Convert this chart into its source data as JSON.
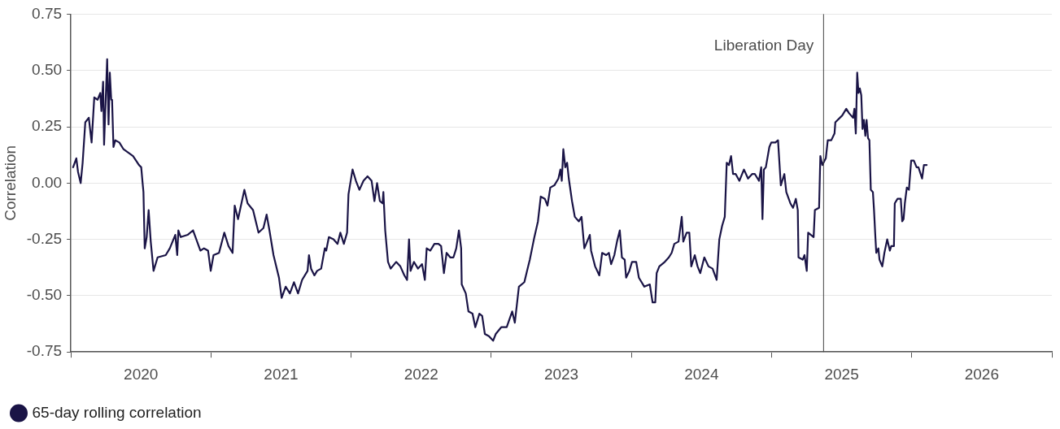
{
  "chart_data": {
    "type": "line",
    "ylabel": "Correlation",
    "xlim": [
      2020,
      2027
    ],
    "xticks": [
      {
        "value": 2020,
        "label": null
      },
      {
        "value": 2020.5,
        "label": "2020"
      },
      {
        "value": 2021,
        "label": null
      },
      {
        "value": 2021.5,
        "label": "2021"
      },
      {
        "value": 2022,
        "label": null
      },
      {
        "value": 2022.5,
        "label": "2022"
      },
      {
        "value": 2023,
        "label": null
      },
      {
        "value": 2023.5,
        "label": "2023"
      },
      {
        "value": 2024,
        "label": null
      },
      {
        "value": 2024.5,
        "label": "2024"
      },
      {
        "value": 2025,
        "label": null
      },
      {
        "value": 2025.5,
        "label": "2025"
      },
      {
        "value": 2026,
        "label": null
      },
      {
        "value": 2026.5,
        "label": "2026"
      },
      {
        "value": 2027,
        "label": null
      }
    ],
    "ylim": [
      -0.75,
      0.75
    ],
    "yticks": [
      {
        "value": -0.75,
        "label": "-0.75"
      },
      {
        "value": -0.5,
        "label": "-0.50"
      },
      {
        "value": -0.25,
        "label": "-0.25"
      },
      {
        "value": 0,
        "label": "0.00"
      },
      {
        "value": 0.25,
        "label": "0.25"
      },
      {
        "value": 0.5,
        "label": "0.50"
      },
      {
        "value": 0.75,
        "label": "0.75"
      }
    ],
    "grid": "y",
    "legend": "bottom left",
    "marker": "none",
    "line_style": "solid",
    "ref_lines": [
      {
        "axis": "x",
        "value": 2025.371,
        "label": "Liberation Day",
        "color": "#444444"
      }
    ],
    "series": [
      {
        "name": "65-day rolling correlation",
        "color": "#1a1446",
        "x": [
          2020.016,
          2020.039,
          2020.051,
          2020.07,
          2020.084,
          2020.103,
          2020.128,
          2020.148,
          2020.167,
          2020.191,
          2020.21,
          2020.218,
          2020.23,
          2020.237,
          2020.259,
          2020.269,
          2020.278,
          2020.288,
          2020.294,
          2020.304,
          2020.317,
          2020.346,
          2020.376,
          2020.444,
          2020.486,
          2020.502,
          2020.512,
          2020.518,
          2020.527,
          2020.541,
          2020.555,
          2020.57,
          2020.59,
          2020.619,
          2020.677,
          2020.706,
          2020.745,
          2020.759,
          2020.767,
          2020.784,
          2020.833,
          2020.872,
          2020.901,
          2020.924,
          2020.95,
          2020.979,
          2020.998,
          2021.018,
          2021.057,
          2021.095,
          2021.125,
          2021.154,
          2021.169,
          2021.193,
          2021.238,
          2021.261,
          2021.3,
          2021.339,
          2021.374,
          2021.397,
          2021.417,
          2021.446,
          2021.485,
          2021.504,
          2021.533,
          2021.563,
          2021.592,
          2021.621,
          2021.65,
          2021.689,
          2021.699,
          2021.714,
          2021.738,
          2021.757,
          2021.786,
          2021.812,
          2021.822,
          2021.841,
          2021.874,
          2021.903,
          2021.923,
          2021.948,
          2021.971,
          2021.981,
          2022.01,
          2022.034,
          2022.059,
          2022.088,
          2022.117,
          2022.146,
          2022.166,
          2022.185,
          2022.205,
          2022.224,
          2022.23,
          2022.243,
          2022.263,
          2022.282,
          2022.321,
          2022.351,
          2022.38,
          2022.399,
          2022.413,
          2022.424,
          2022.448,
          2022.477,
          2022.506,
          2022.526,
          2022.539,
          2022.565,
          2022.594,
          2022.623,
          2022.642,
          2022.662,
          2022.681,
          2022.707,
          2022.73,
          2022.75,
          2022.769,
          2022.785,
          2022.789,
          2022.818,
          2022.837,
          2022.866,
          2022.886,
          2022.915,
          2022.935,
          2022.954,
          2022.983,
          2023.013,
          2023.032,
          2023.071,
          2023.11,
          2023.149,
          2023.168,
          2023.197,
          2023.236,
          2023.255,
          2023.275,
          2023.304,
          2023.333,
          2023.353,
          2023.382,
          2023.401,
          2023.421,
          2023.45,
          2023.479,
          2023.493,
          2023.503,
          2023.514,
          2023.528,
          2023.541,
          2023.553,
          2023.576,
          2023.596,
          2023.625,
          2023.644,
          2023.664,
          2023.703,
          2023.712,
          2023.741,
          2023.771,
          2023.791,
          2023.82,
          2023.839,
          2023.855,
          2023.878,
          2023.897,
          2023.917,
          2023.932,
          2023.952,
          2023.962,
          2023.985,
          2024.004,
          2024.034,
          2024.053,
          2024.092,
          2024.131,
          2024.151,
          2024.17,
          2024.18,
          2024.199,
          2024.238,
          2024.267,
          2024.287,
          2024.306,
          2024.336,
          2024.359,
          2024.37,
          2024.394,
          2024.413,
          2024.427,
          2024.452,
          2024.472,
          2024.491,
          2024.52,
          2024.55,
          2024.579,
          2024.608,
          2024.627,
          2024.647,
          2024.666,
          2024.68,
          2024.696,
          2024.711,
          2024.725,
          2024.744,
          2024.77,
          2024.803,
          2024.832,
          2024.861,
          2024.881,
          2024.91,
          2024.926,
          2024.935,
          2024.945,
          2024.959,
          2024.984,
          2024.998,
          2025.027,
          2025.046,
          2025.066,
          2025.091,
          2025.105,
          2025.134,
          2025.153,
          2025.173,
          2025.187,
          2025.192,
          2025.222,
          2025.235,
          2025.251,
          2025.261,
          2025.3,
          2025.309,
          2025.339,
          2025.348,
          2025.362,
          2025.387,
          2025.401,
          2025.426,
          2025.449,
          2025.455,
          2025.504,
          2025.533,
          2025.553,
          2025.582,
          2025.591,
          2025.601,
          2025.611,
          2025.62,
          2025.63,
          2025.64,
          2025.649,
          2025.659,
          2025.669,
          2025.678,
          2025.688,
          2025.698,
          2025.708,
          2025.723,
          2025.731,
          2025.739,
          2025.747,
          2025.762,
          2025.77,
          2025.79,
          2025.805,
          2025.825,
          2025.844,
          2025.854,
          2025.873,
          2025.879,
          2025.899,
          2025.922,
          2025.932,
          2025.942,
          2025.951,
          2025.965,
          2025.98,
          2025.996,
          2026.015,
          2026.035,
          2026.048,
          2026.074,
          2026.087,
          2026.107
        ],
        "values": [
          0.07,
          0.11,
          0.05,
          0.0,
          0.09,
          0.27,
          0.29,
          0.18,
          0.38,
          0.37,
          0.4,
          0.32,
          0.45,
          0.17,
          0.55,
          0.26,
          0.49,
          0.37,
          0.37,
          0.16,
          0.19,
          0.18,
          0.15,
          0.12,
          0.08,
          0.07,
          0.0,
          -0.04,
          -0.29,
          -0.24,
          -0.12,
          -0.26,
          -0.39,
          -0.33,
          -0.32,
          -0.29,
          -0.23,
          -0.32,
          -0.21,
          -0.24,
          -0.23,
          -0.21,
          -0.26,
          -0.3,
          -0.29,
          -0.3,
          -0.39,
          -0.32,
          -0.31,
          -0.22,
          -0.28,
          -0.31,
          -0.1,
          -0.16,
          -0.03,
          -0.09,
          -0.12,
          -0.22,
          -0.2,
          -0.14,
          -0.21,
          -0.32,
          -0.42,
          -0.51,
          -0.46,
          -0.49,
          -0.44,
          -0.49,
          -0.43,
          -0.39,
          -0.32,
          -0.38,
          -0.41,
          -0.39,
          -0.38,
          -0.29,
          -0.3,
          -0.24,
          -0.25,
          -0.27,
          -0.22,
          -0.27,
          -0.22,
          -0.05,
          0.06,
          0.01,
          -0.03,
          0.01,
          0.03,
          0.01,
          -0.08,
          0.0,
          -0.08,
          -0.09,
          -0.04,
          -0.21,
          -0.35,
          -0.38,
          -0.35,
          -0.37,
          -0.41,
          -0.43,
          -0.25,
          -0.39,
          -0.35,
          -0.38,
          -0.36,
          -0.43,
          -0.29,
          -0.3,
          -0.27,
          -0.27,
          -0.28,
          -0.4,
          -0.31,
          -0.33,
          -0.33,
          -0.29,
          -0.21,
          -0.29,
          -0.45,
          -0.49,
          -0.57,
          -0.58,
          -0.64,
          -0.58,
          -0.59,
          -0.67,
          -0.68,
          -0.7,
          -0.67,
          -0.64,
          -0.64,
          -0.57,
          -0.62,
          -0.46,
          -0.44,
          -0.39,
          -0.34,
          -0.25,
          -0.17,
          -0.06,
          -0.07,
          -0.1,
          -0.02,
          -0.01,
          0.02,
          0.06,
          0.01,
          0.15,
          0.07,
          0.09,
          0.02,
          -0.08,
          -0.15,
          -0.17,
          -0.15,
          -0.29,
          -0.23,
          -0.3,
          -0.37,
          -0.41,
          -0.31,
          -0.32,
          -0.31,
          -0.36,
          -0.32,
          -0.26,
          -0.21,
          -0.33,
          -0.34,
          -0.42,
          -0.39,
          -0.35,
          -0.35,
          -0.42,
          -0.46,
          -0.45,
          -0.53,
          -0.53,
          -0.4,
          -0.37,
          -0.35,
          -0.33,
          -0.31,
          -0.27,
          -0.26,
          -0.15,
          -0.26,
          -0.22,
          -0.22,
          -0.37,
          -0.32,
          -0.37,
          -0.4,
          -0.33,
          -0.37,
          -0.38,
          -0.43,
          -0.25,
          -0.19,
          -0.15,
          0.09,
          0.08,
          0.12,
          0.04,
          0.04,
          0.01,
          0.06,
          0.02,
          0.04,
          0.04,
          0.01,
          0.07,
          -0.16,
          0.06,
          0.07,
          0.16,
          0.18,
          0.18,
          0.19,
          -0.01,
          0.04,
          -0.04,
          -0.09,
          -0.11,
          -0.07,
          -0.12,
          -0.33,
          -0.34,
          -0.32,
          -0.39,
          -0.22,
          -0.24,
          -0.12,
          -0.11,
          0.12,
          0.08,
          0.11,
          0.19,
          0.19,
          0.22,
          0.27,
          0.3,
          0.33,
          0.31,
          0.29,
          0.33,
          0.22,
          0.49,
          0.4,
          0.42,
          0.39,
          0.24,
          0.28,
          0.21,
          0.28,
          0.2,
          0.19,
          -0.03,
          -0.04,
          -0.12,
          -0.22,
          -0.31,
          -0.29,
          -0.34,
          -0.37,
          -0.31,
          -0.25,
          -0.3,
          -0.28,
          -0.28,
          -0.09,
          -0.07,
          -0.07,
          -0.17,
          -0.16,
          -0.09,
          -0.02,
          -0.03,
          0.1,
          0.1,
          0.07,
          0.07,
          0.02,
          0.08,
          0.08
        ]
      }
    ]
  }
}
